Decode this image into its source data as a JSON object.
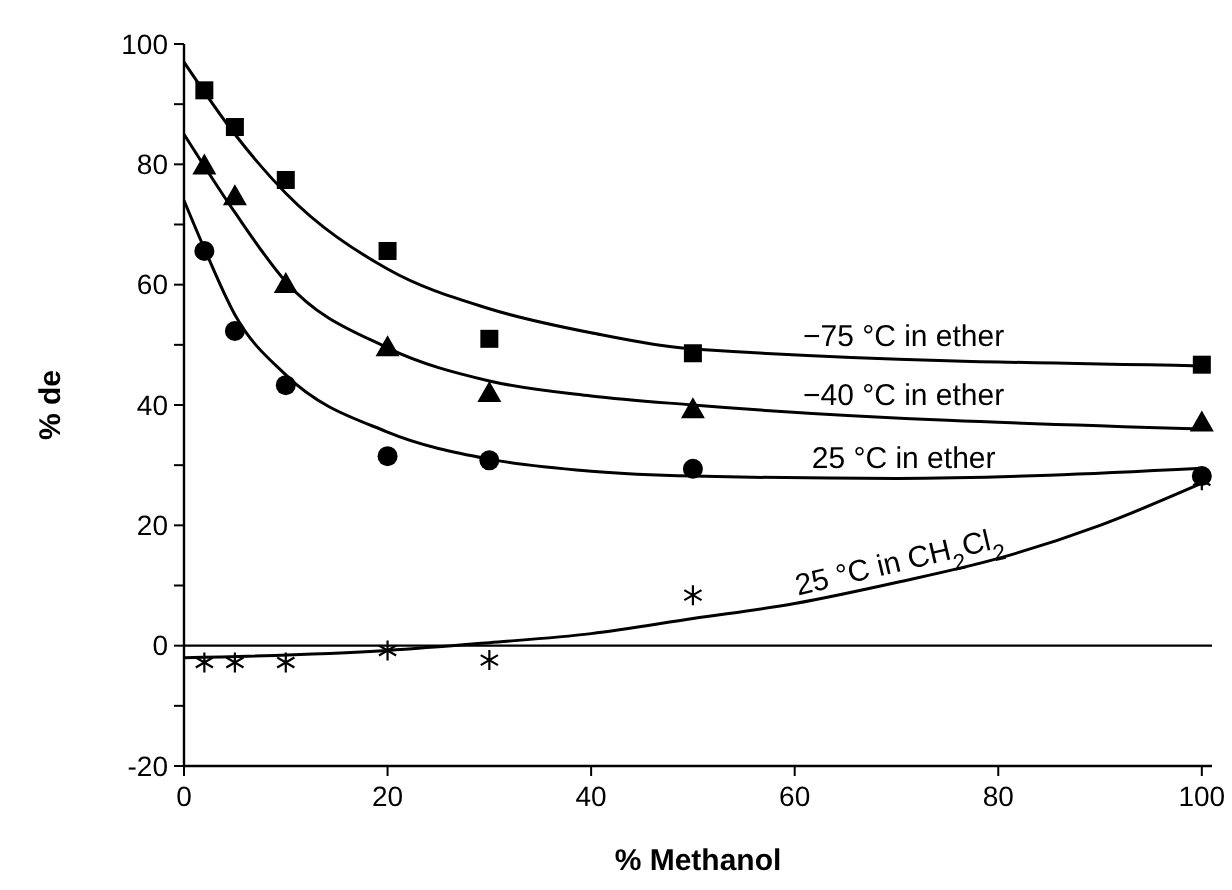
{
  "chart_data": {
    "type": "scatter",
    "xlabel": "% Methanol",
    "ylabel": "% de",
    "xlim": [
      0,
      101
    ],
    "ylim": [
      -20,
      100
    ],
    "xticks": [
      0,
      20,
      40,
      60,
      80,
      100
    ],
    "yticks": [
      -20,
      {
        "value": -10,
        "label": null
      },
      0,
      {
        "value": 10,
        "label": null
      },
      20,
      {
        "value": 30,
        "label": null
      },
      40,
      {
        "value": 50,
        "label": null
      },
      60,
      {
        "value": 70,
        "label": null
      },
      80,
      {
        "value": 90,
        "label": null
      },
      100
    ],
    "grid": false,
    "ref_lines": [
      {
        "axis": "y",
        "value": 0,
        "color": "#000000"
      }
    ],
    "series": [
      {
        "marker": "square",
        "color": "#000000",
        "x": [
          2,
          5,
          10,
          20,
          30,
          50,
          100
        ],
        "values": [
          92.3,
          86.2,
          77.4,
          65.6,
          51,
          48.6,
          46.7
        ]
      },
      {
        "marker": "triangle",
        "color": "#000000",
        "x": [
          2,
          5,
          10,
          20,
          30,
          50,
          100
        ],
        "values": [
          79.8,
          74.7,
          60.1,
          49.6,
          42,
          39.3,
          37.1
        ]
      },
      {
        "marker": "circle",
        "color": "#000000",
        "x": [
          2,
          5,
          10,
          20,
          30,
          50,
          100
        ],
        "values": [
          65.6,
          52.3,
          43.3,
          31.5,
          30.8,
          29.4,
          28.2
        ]
      },
      {
        "marker": "cross",
        "color": "#000000",
        "x": [
          2,
          5,
          10,
          20,
          30,
          50,
          100
        ],
        "values": [
          -2.8,
          -2.8,
          -2.8,
          -0.8,
          -2.4,
          8.4,
          27.5
        ]
      },
      {
        "type": "line",
        "marker": "none",
        "color": "#000000",
        "x": [
          0,
          5,
          10,
          20,
          30,
          40,
          50,
          100
        ],
        "values": [
          97,
          85,
          75.2,
          62.6,
          56,
          52,
          49.3,
          46.5
        ]
      },
      {
        "type": "line",
        "marker": "none",
        "color": "#000000",
        "x": [
          0,
          5,
          10,
          20,
          30,
          40,
          50,
          100
        ],
        "values": [
          85,
          72,
          60.5,
          49.5,
          44,
          41.5,
          40,
          36
        ]
      },
      {
        "type": "line",
        "marker": "none",
        "color": "#000000",
        "x": [
          0,
          2,
          5,
          10,
          20,
          30,
          40,
          50,
          70,
          100
        ],
        "values": [
          74,
          66,
          55,
          45,
          35.5,
          31,
          29,
          28.2,
          27.8,
          29.5
        ]
      },
      {
        "type": "line",
        "marker": "none",
        "color": "#000000",
        "x": [
          0,
          20,
          30,
          40,
          50,
          60,
          70,
          80,
          90,
          100
        ],
        "values": [
          -2,
          -0.8,
          0.5,
          2,
          4.5,
          7,
          10.5,
          14.5,
          20,
          27
        ]
      }
    ],
    "annotations": [
      "−75 °C in ether",
      "−40 °C in ether",
      "25 °C in ether",
      "25 °C in CH$_{2}$Cl$_{2}$"
    ]
  }
}
